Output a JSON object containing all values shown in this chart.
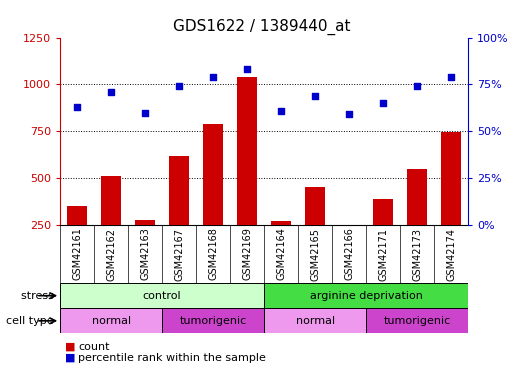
{
  "title": "GDS1622 / 1389440_at",
  "samples": [
    "GSM42161",
    "GSM42162",
    "GSM42163",
    "GSM42167",
    "GSM42168",
    "GSM42169",
    "GSM42164",
    "GSM42165",
    "GSM42166",
    "GSM42171",
    "GSM42173",
    "GSM42174"
  ],
  "counts": [
    350,
    510,
    275,
    620,
    790,
    1040,
    270,
    455,
    215,
    390,
    550,
    745
  ],
  "percentiles": [
    63,
    71,
    60,
    74,
    79,
    83,
    61,
    69,
    59,
    65,
    74,
    79
  ],
  "bar_color": "#cc0000",
  "dot_color": "#0000cc",
  "ylim_left": [
    250,
    1250
  ],
  "ylim_right": [
    0,
    100
  ],
  "yticks_left": [
    250,
    500,
    750,
    1000,
    1250
  ],
  "yticks_right": [
    0,
    25,
    50,
    75,
    100
  ],
  "ytick_labels_right": [
    "0%",
    "25%",
    "50%",
    "75%",
    "100%"
  ],
  "grid_values": [
    500,
    750,
    1000
  ],
  "stress_groups": [
    {
      "label": "control",
      "start": 0,
      "end": 6,
      "color": "#ccffcc"
    },
    {
      "label": "arginine deprivation",
      "start": 6,
      "end": 12,
      "color": "#44dd44"
    }
  ],
  "celltype_groups": [
    {
      "label": "normal",
      "start": 0,
      "end": 3,
      "color": "#ee99ee"
    },
    {
      "label": "tumorigenic",
      "start": 3,
      "end": 6,
      "color": "#cc44cc"
    },
    {
      "label": "normal",
      "start": 6,
      "end": 9,
      "color": "#ee99ee"
    },
    {
      "label": "tumorigenic",
      "start": 9,
      "end": 12,
      "color": "#cc44cc"
    }
  ],
  "stress_label": "stress",
  "celltype_label": "cell type",
  "legend_count_label": "count",
  "legend_percentile_label": "percentile rank within the sample",
  "background_color": "#ffffff",
  "plot_bg_color": "#ffffff",
  "axis_color_left": "#cc0000",
  "axis_color_right": "#0000cc",
  "title_fontsize": 11,
  "tick_fontsize": 8,
  "sample_label_fontsize": 7,
  "label_area_color": "#c8c8c8"
}
